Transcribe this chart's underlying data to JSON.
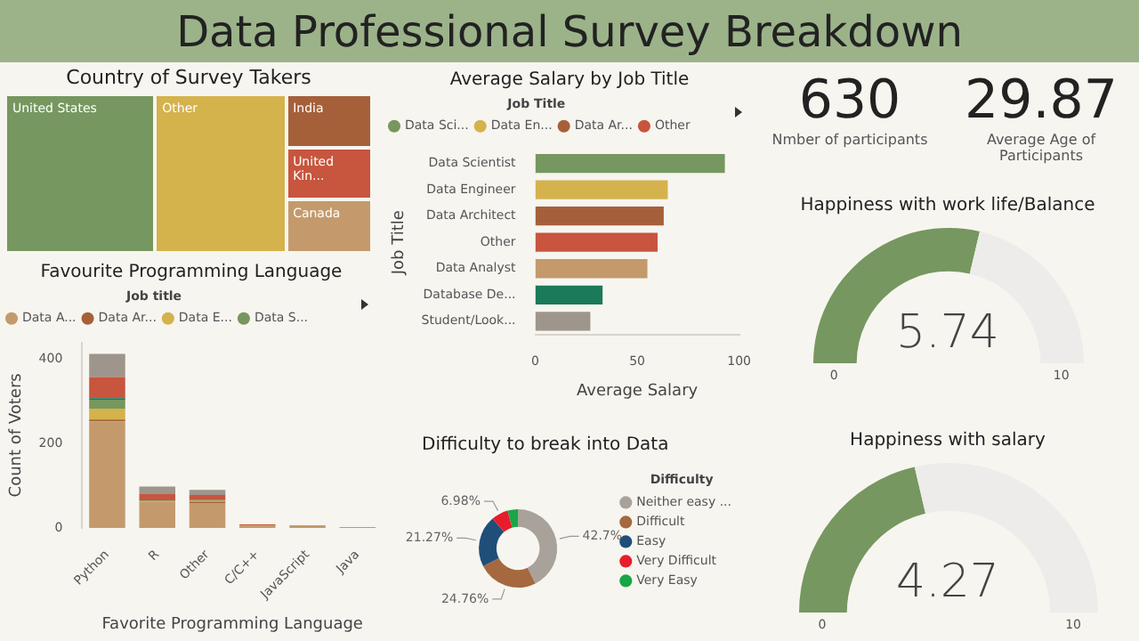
{
  "chart_data": [
    {
      "type": "other",
      "title": "Data Professional Survey Breakdown",
      "color": "#9cb38a"
    },
    {
      "type": "other",
      "title": "Country of Survey Takers",
      "categories": [
        "United States",
        "Other",
        "India",
        "United Kin...",
        "Canada"
      ],
      "colors": [
        "#76975f",
        "#d4b24c",
        "#a5603a",
        "#c8553d",
        "#c49a6c"
      ]
    },
    {
      "type": "bar",
      "orientation": "horizontal",
      "title": "Average Salary by Job Title",
      "xlabel": "Average Salary",
      "ylabel": "Job Title",
      "legend_title": "Job Title",
      "legend": "top left",
      "categories": [
        "Data Scientist",
        "Data Engineer",
        "Data Architect",
        "Other",
        "Data Analyst",
        "Database De...",
        "Student/Look..."
      ],
      "xlim": [
        0,
        100
      ],
      "xticks": [
        0,
        50,
        100
      ],
      "grid": false,
      "series": [
        {
          "name": "Data Sci...",
          "color": "#76975f",
          "values": [
            93,
            null,
            null,
            null,
            null,
            null,
            null
          ]
        },
        {
          "name": "Data En...",
          "color": "#d4b24c",
          "values": [
            null,
            65,
            null,
            null,
            null,
            null,
            null
          ]
        },
        {
          "name": "Data Ar...",
          "color": "#a5603a",
          "values": [
            null,
            null,
            63,
            null,
            null,
            null,
            null
          ]
        },
        {
          "name": "Other",
          "color": "#c8553d",
          "values": [
            null,
            null,
            null,
            60,
            null,
            null,
            null
          ]
        },
        {
          "color": "#c49a6c",
          "values": [
            null,
            null,
            null,
            null,
            55,
            null,
            null
          ]
        },
        {
          "color": "#1a7a5a",
          "values": [
            null,
            null,
            null,
            null,
            null,
            33,
            null
          ]
        },
        {
          "color": "#9e958c",
          "values": [
            null,
            null,
            null,
            null,
            null,
            null,
            27
          ]
        }
      ]
    },
    {
      "type": "other",
      "values": [
        630
      ],
      "data_labels": true,
      "categories": [
        "Nmber of participants"
      ]
    },
    {
      "type": "other",
      "values": [
        29.87
      ],
      "data_labels": true,
      "categories": [
        "Average Age of Participants"
      ]
    },
    {
      "type": "other",
      "title": "Happiness with work life/Balance",
      "values": [
        5.74
      ],
      "data_labels": true,
      "annotations": [
        "0",
        "10"
      ],
      "color": "#76975f"
    },
    {
      "type": "bar",
      "stacked": true,
      "title": "Favourite Programming Language",
      "xlabel": "Favorite Programming Language",
      "ylabel": "Count of Voters",
      "legend_title": "Job title",
      "legend": "top left",
      "categories": [
        "Python",
        "R",
        "Other",
        "C/C++",
        "JavaScript",
        "Java"
      ],
      "ylim": [
        0,
        440
      ],
      "yticks": [
        0,
        200,
        400
      ],
      "grid": false,
      "series": [
        {
          "name": "Data A...",
          "color": "#c49a6c",
          "values": [
            253,
            62,
            59,
            5,
            6,
            2
          ]
        },
        {
          "name": "Data Ar...",
          "color": "#a5603a",
          "values": [
            4,
            0,
            3,
            0,
            0,
            0
          ]
        },
        {
          "name": "Data E...",
          "color": "#d4b24c",
          "values": [
            26,
            0,
            2,
            0,
            0,
            0
          ]
        },
        {
          "name": "Data S...",
          "color": "#76975f",
          "values": [
            21,
            3,
            2,
            0,
            0,
            0
          ]
        },
        {
          "color": "#1a7a5a",
          "values": [
            4,
            0,
            0,
            0,
            0,
            0
          ]
        },
        {
          "color": "#c8553d",
          "values": [
            50,
            15,
            12,
            3,
            0,
            0
          ]
        },
        {
          "color": "#9e958c",
          "values": [
            55,
            18,
            12,
            0,
            0,
            0
          ]
        }
      ]
    },
    {
      "type": "donut",
      "title": "Difficulty to break into Data",
      "legend_title": "Difficulty",
      "legend": "right",
      "categories": [
        "Neither easy ...",
        "Difficult",
        "Easy",
        "Very Difficult",
        "Very Easy"
      ],
      "values": [
        42.7,
        24.76,
        21.27,
        6.98,
        4.29
      ],
      "colors": [
        "#a8a29a",
        "#a5683f",
        "#1f4e79",
        "#e81d2b",
        "#1aa548"
      ],
      "value_labels": [
        "42.7%",
        "24.76%",
        "21.27%",
        "6.98%",
        null
      ]
    },
    {
      "type": "other",
      "title": "Happiness with salary",
      "values": [
        4.27
      ],
      "data_labels": true,
      "annotations": [
        "0",
        "10"
      ],
      "color": "#76975f"
    }
  ]
}
